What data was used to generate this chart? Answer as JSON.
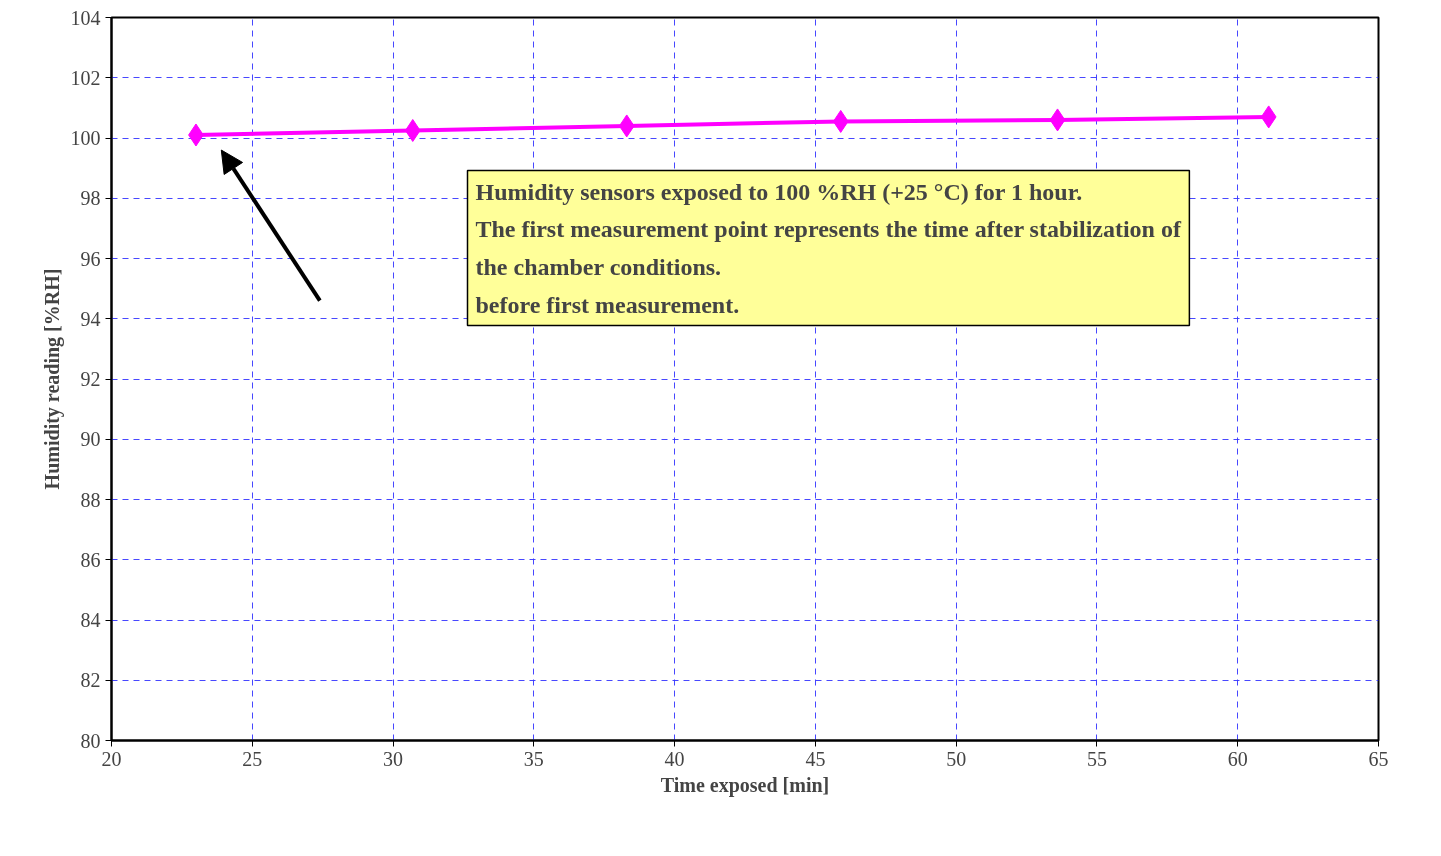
{
  "chart_data": {
    "type": "line",
    "xlabel": "Time exposed [min]",
    "ylabel": "Humidity reading [%RH]",
    "x": [
      23.0,
      30.7,
      38.3,
      45.9,
      53.6,
      61.1
    ],
    "series": [
      {
        "color": "#ff00ff",
        "values": [
          100.1,
          100.25,
          100.4,
          100.55,
          100.6,
          100.7
        ]
      }
    ],
    "xlim": [
      20,
      65
    ],
    "xticks": [
      20,
      25,
      30,
      35,
      40,
      45,
      50,
      55,
      60,
      65
    ],
    "ylim": [
      80,
      104
    ],
    "yticks": [
      80,
      82,
      84,
      86,
      88,
      90,
      92,
      94,
      96,
      98,
      100,
      102,
      104
    ],
    "grid": true,
    "marker": "diamond",
    "line_style": "solid",
    "annotations": [
      "Humidity sensors exposed to 100 %RH (+25 °C) for 1 hour.\nThe first measurement point represents the time after stabilization of\nthe chamber conditions.\nbefore first measurement."
    ]
  }
}
